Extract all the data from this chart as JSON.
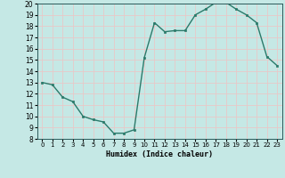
{
  "x": [
    0,
    1,
    2,
    3,
    4,
    5,
    6,
    7,
    8,
    9,
    10,
    11,
    12,
    13,
    14,
    15,
    16,
    17,
    18,
    19,
    20,
    21,
    22,
    23
  ],
  "y": [
    13,
    12.8,
    11.7,
    11.3,
    10.0,
    9.7,
    9.5,
    8.5,
    8.5,
    8.8,
    15.2,
    18.3,
    17.5,
    17.6,
    17.6,
    19.0,
    19.5,
    20.1,
    20.1,
    19.5,
    19.0,
    18.3,
    15.3,
    14.5
  ],
  "xlabel": "Humidex (Indice chaleur)",
  "ylim": [
    8,
    20
  ],
  "xlim": [
    -0.5,
    23.5
  ],
  "bg_color": "#c5e8e5",
  "line_color": "#2a7a6a",
  "marker_color": "#2a7a6a",
  "grid_color": "#e8c8c8",
  "yticks": [
    8,
    9,
    10,
    11,
    12,
    13,
    14,
    15,
    16,
    17,
    18,
    19,
    20
  ],
  "xticks": [
    0,
    1,
    2,
    3,
    4,
    5,
    6,
    7,
    8,
    9,
    10,
    11,
    12,
    13,
    14,
    15,
    16,
    17,
    18,
    19,
    20,
    21,
    22,
    23
  ]
}
